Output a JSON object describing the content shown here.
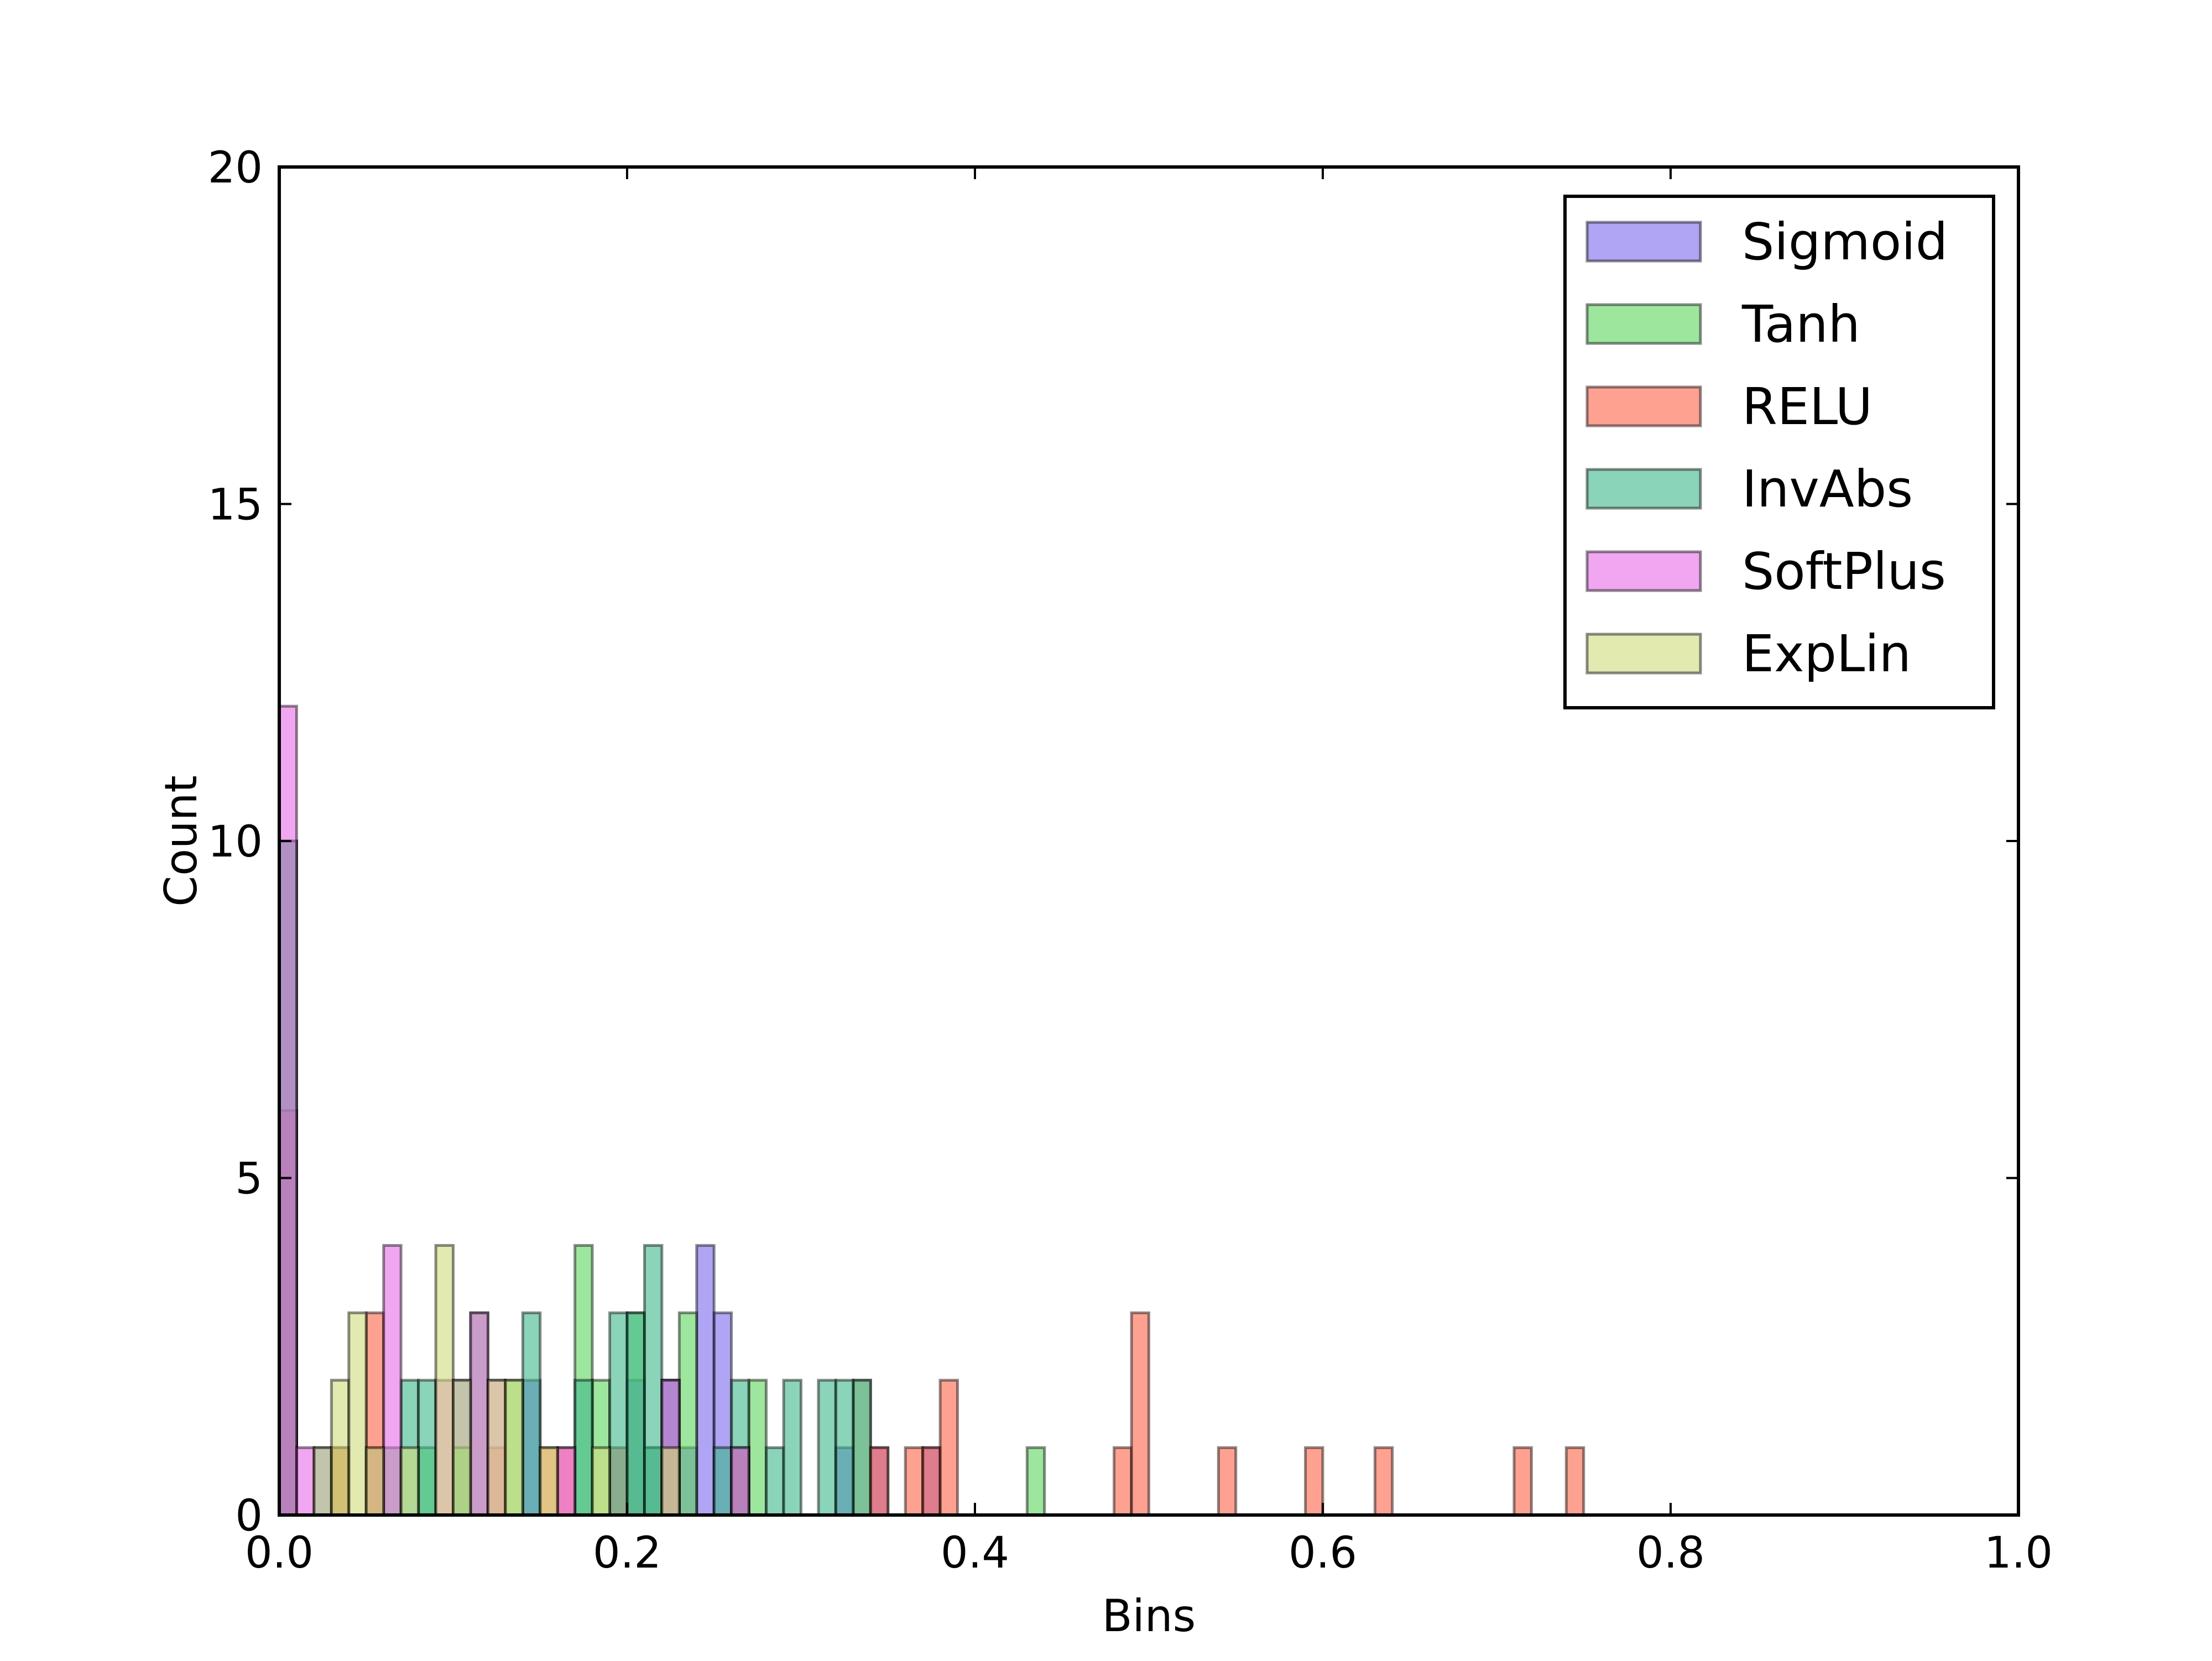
{
  "chart_data": {
    "type": "bar",
    "title": "",
    "xlabel": "Bins",
    "ylabel": "Count",
    "xlim": [
      0.0,
      1.0
    ],
    "ylim": [
      0,
      20
    ],
    "xticks": [
      "0.0",
      "0.2",
      "0.4",
      "0.6",
      "0.8",
      "1.0"
    ],
    "yticks": [
      "0",
      "5",
      "10",
      "15",
      "20"
    ],
    "grid": false,
    "legend_position": "top-right",
    "bin_width": 0.01,
    "series": [
      {
        "name": "Sigmoid",
        "color": "#7b68ee",
        "x": [
          0.0,
          0.02,
          0.05,
          0.1,
          0.14,
          0.2,
          0.21,
          0.22,
          0.23,
          0.24,
          0.25,
          0.26,
          0.32,
          0.33,
          0.34,
          0.37
        ],
        "counts": [
          6,
          1,
          1,
          2,
          2,
          2,
          1,
          2,
          1,
          4,
          3,
          1,
          1,
          2,
          1,
          1
        ]
      },
      {
        "name": "Tanh",
        "color": "#5cd65c",
        "x": [
          0.0,
          0.03,
          0.06,
          0.08,
          0.1,
          0.11,
          0.13,
          0.17,
          0.18,
          0.2,
          0.21,
          0.23,
          0.26,
          0.27,
          0.33,
          0.43
        ],
        "counts": [
          10,
          1,
          1,
          1,
          1,
          3,
          2,
          4,
          2,
          3,
          1,
          3,
          1,
          2,
          2,
          1
        ]
      },
      {
        "name": "RELU",
        "color": "#ff6347",
        "x": [
          0.0,
          0.03,
          0.05,
          0.12,
          0.15,
          0.16,
          0.19,
          0.22,
          0.26,
          0.34,
          0.36,
          0.37,
          0.38,
          0.48,
          0.49,
          0.54,
          0.59,
          0.63,
          0.71,
          0.74
        ],
        "counts": [
          6,
          1,
          3,
          1,
          1,
          1,
          1,
          1,
          1,
          1,
          1,
          1,
          2,
          1,
          3,
          1,
          1,
          1,
          1,
          1
        ]
      },
      {
        "name": "InvAbs",
        "color": "#3cb88a",
        "x": [
          0.0,
          0.07,
          0.08,
          0.14,
          0.17,
          0.19,
          0.2,
          0.21,
          0.22,
          0.25,
          0.26,
          0.28,
          0.29,
          0.31,
          0.32
        ],
        "counts": [
          10,
          2,
          2,
          3,
          2,
          3,
          3,
          4,
          2,
          1,
          2,
          1,
          2,
          2,
          2
        ]
      },
      {
        "name": "SoftPlus",
        "color": "#e66be6",
        "x": [
          0.0,
          0.01,
          0.06,
          0.09,
          0.11,
          0.12,
          0.16,
          0.22,
          0.26
        ],
        "counts": [
          12,
          1,
          4,
          2,
          3,
          2,
          1,
          2,
          1
        ]
      },
      {
        "name": "ExpLin",
        "color": "#cfdc7b",
        "x": [
          0.02,
          0.03,
          0.04,
          0.05,
          0.07,
          0.09,
          0.1,
          0.12,
          0.13,
          0.15,
          0.18,
          0.22
        ],
        "counts": [
          1,
          2,
          3,
          1,
          1,
          4,
          2,
          2,
          2,
          1,
          1,
          1
        ]
      }
    ]
  }
}
